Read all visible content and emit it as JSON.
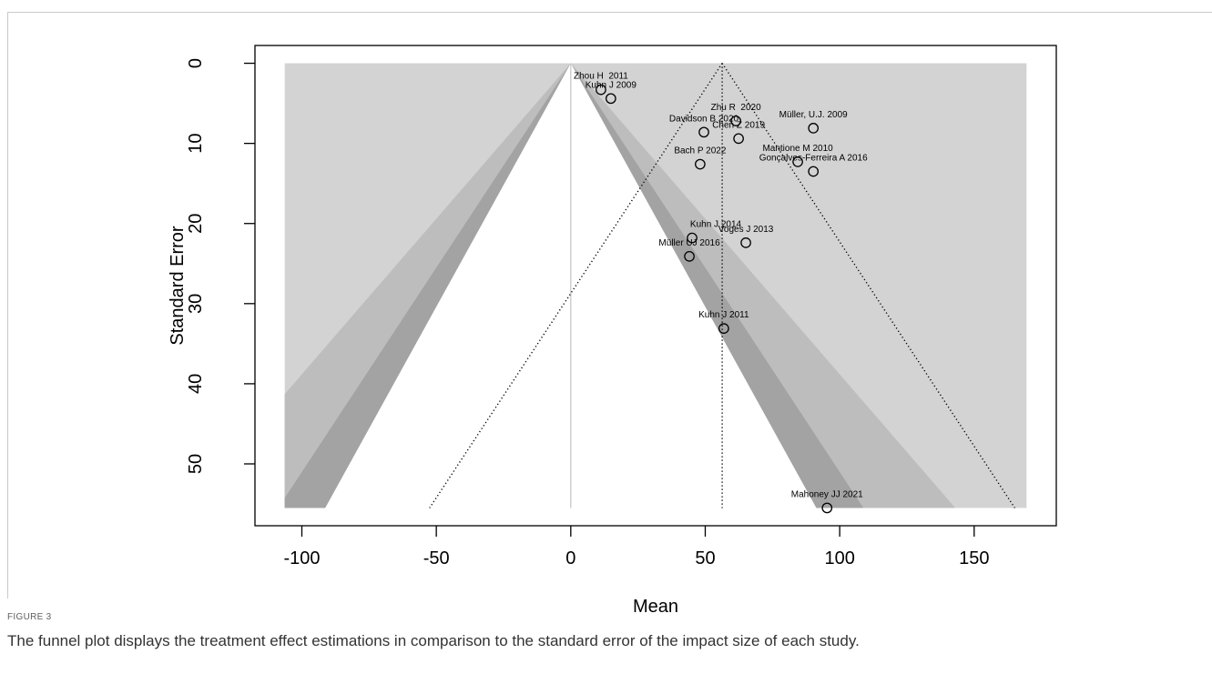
{
  "figure": {
    "label": "FIGURE 3",
    "caption": "The funnel plot displays the treatment effect estimations in comparison to the standard error of the impact size of each study."
  },
  "chart_data": {
    "type": "scatter",
    "title": "",
    "xlabel": "Mean",
    "ylabel": "Standard Error",
    "xlim": [
      -106.4,
      169.5
    ],
    "ylim": [
      0,
      55.5
    ],
    "y_reversed": true,
    "xticks": [
      -100,
      -50,
      0,
      50,
      100,
      150
    ],
    "yticks": [
      0,
      10,
      20,
      30,
      40,
      50
    ],
    "grid": false,
    "legend": "none",
    "reference_line": 0,
    "summary_estimate": 56.3,
    "pseudo_ci_level": 95,
    "contour_levels": [
      90,
      95,
      99
    ],
    "contour_colors": [
      "#ffffff",
      "#a3a3a3",
      "#bdbdbd"
    ],
    "background_color": "#d3d3d3",
    "reference_line_color": "#c4c4c4",
    "points": [
      {
        "label": "Zhou H  2011",
        "x": 11.2,
        "se": 3.3
      },
      {
        "label": "Kuhn J 2009",
        "x": 14.9,
        "se": 4.4
      },
      {
        "label": "Zhu R  2020",
        "x": 61.4,
        "se": 7.2
      },
      {
        "label": "Müller, U.J. 2009",
        "x": 90.2,
        "se": 8.1
      },
      {
        "label": "Davidson B 2020",
        "x": 49.5,
        "se": 8.6
      },
      {
        "label": "Chen Z 2019",
        "x": 62.4,
        "se": 9.4
      },
      {
        "label": "Mantione M 2010",
        "x": 84.4,
        "se": 12.3
      },
      {
        "label": "Gonçalves-Ferreira A 2016",
        "x": 90.2,
        "se": 13.5
      },
      {
        "label": "Bach P 2022",
        "x": 48.1,
        "se": 12.6
      },
      {
        "label": "Kuhn J 2014",
        "x": 45.1,
        "se": 21.8
      },
      {
        "label": "Voges J 2013",
        "x": 65.1,
        "se": 22.4
      },
      {
        "label": "Müller UJ 2016",
        "x": 44.1,
        "se": 24.1
      },
      {
        "label": "Kuhn J 2011",
        "x": 56.9,
        "se": 33.1
      },
      {
        "label": "Mahoney JJ 2021",
        "x": 95.3,
        "se": 55.5
      }
    ]
  }
}
